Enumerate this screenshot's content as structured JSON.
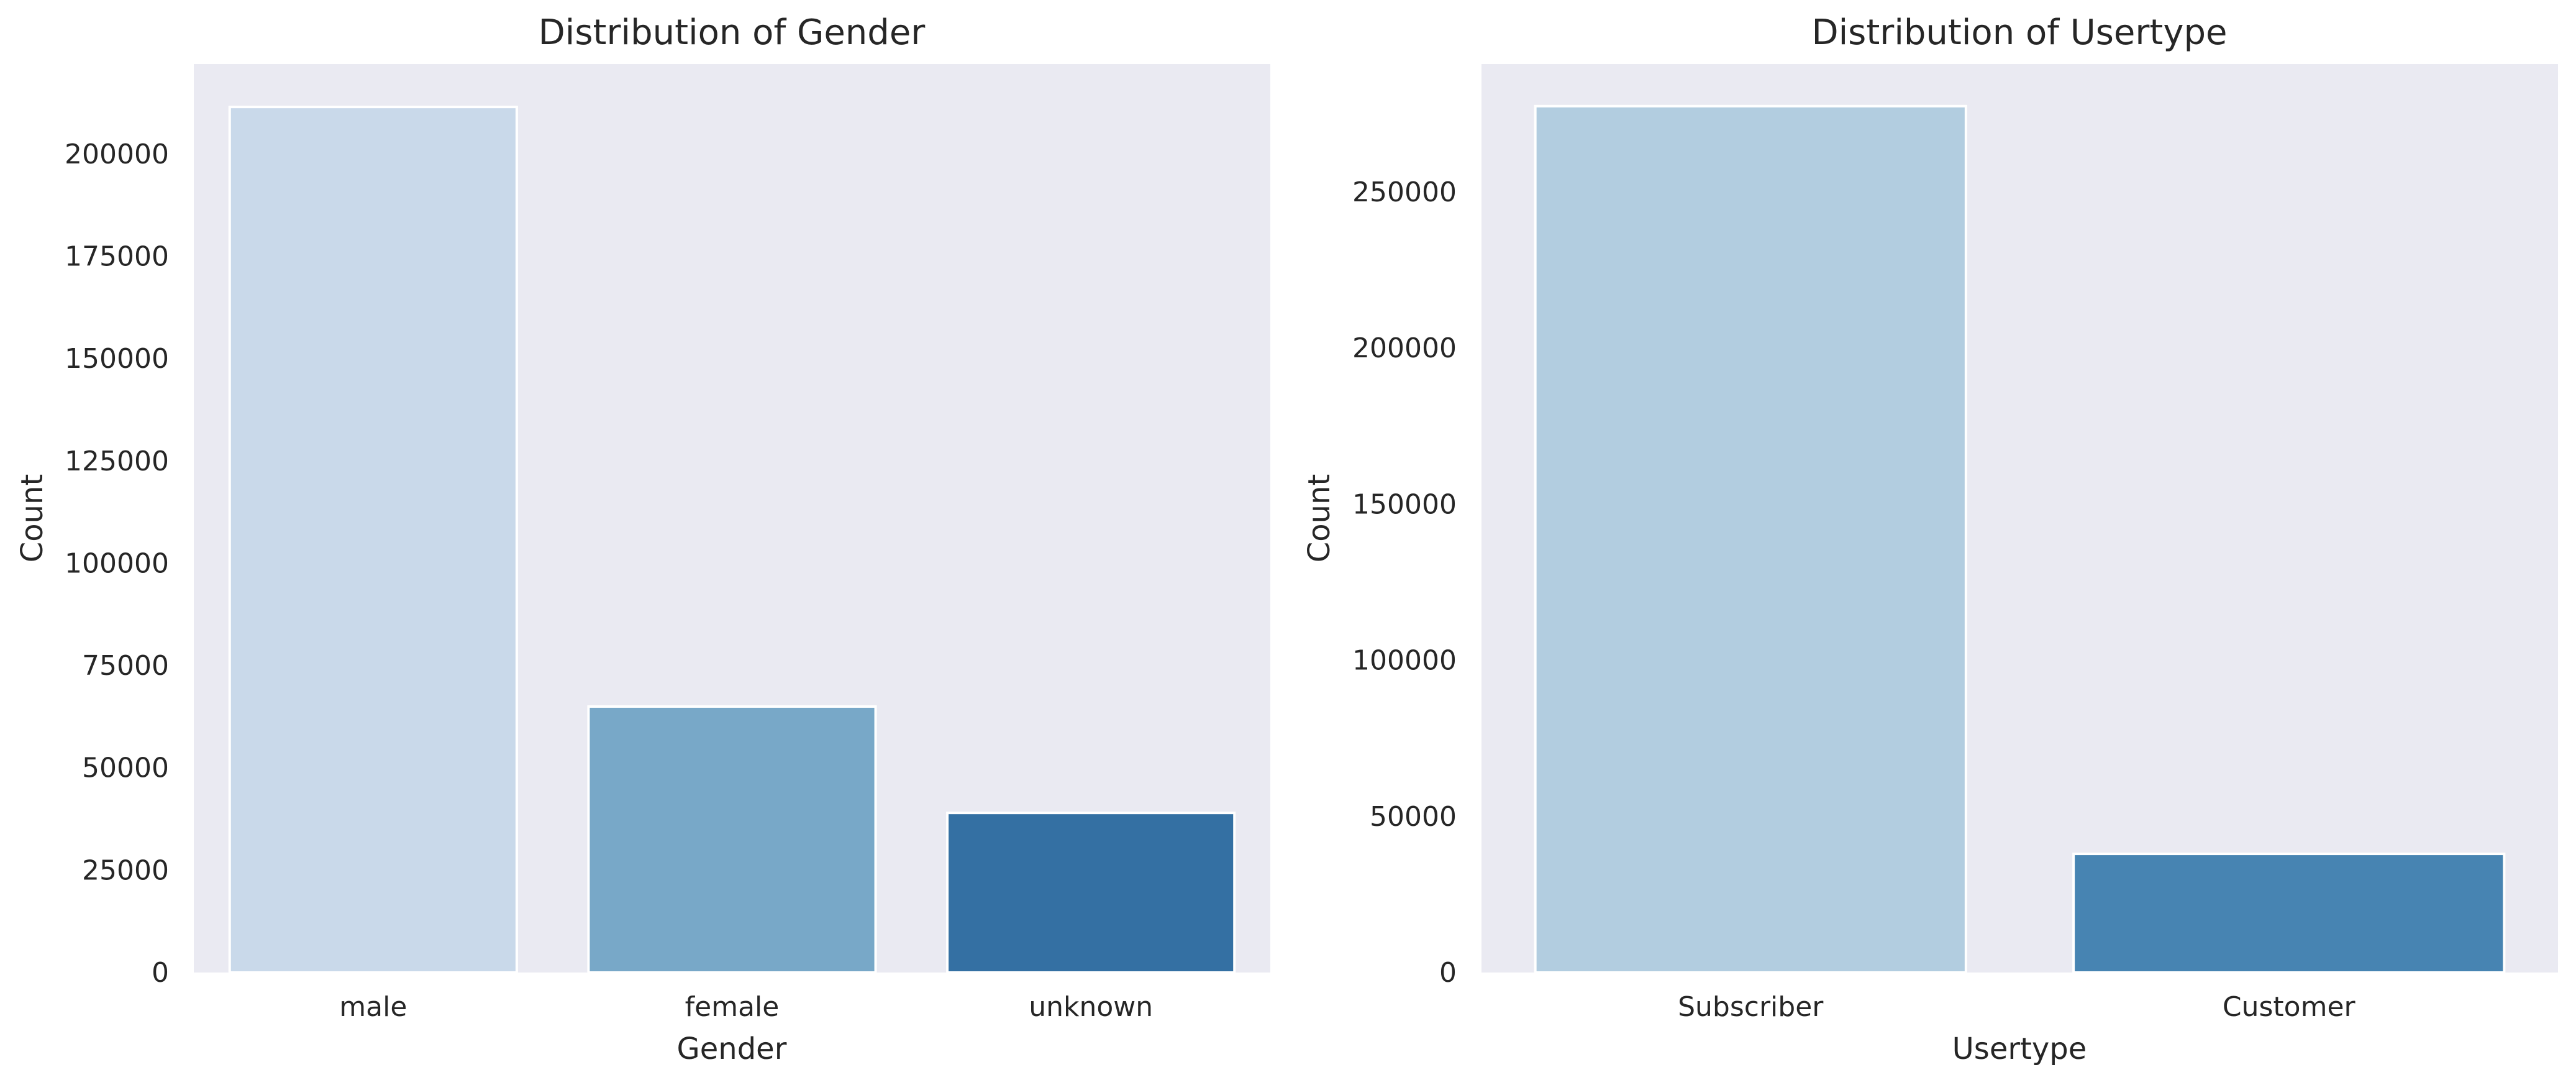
{
  "chart_data": [
    {
      "type": "bar",
      "title": "Distribution of Gender",
      "xlabel": "Gender",
      "ylabel": "Count",
      "categories": [
        "male",
        "female",
        "unknown"
      ],
      "values": [
        211500,
        65000,
        39000
      ],
      "colors": [
        "#c9d9ea",
        "#78a8c8",
        "#3470a3"
      ],
      "ylim": [
        0,
        222000
      ],
      "yticks": [
        0,
        25000,
        50000,
        75000,
        100000,
        125000,
        150000,
        175000,
        200000
      ],
      "grid": false,
      "legend": "none"
    },
    {
      "type": "bar",
      "title": "Distribution of Usertype",
      "xlabel": "Usertype",
      "ylabel": "Count",
      "categories": [
        "Subscriber",
        "Customer"
      ],
      "values": [
        277500,
        38000
      ],
      "colors": [
        "#b2cde0",
        "#4784b2"
      ],
      "ylim": [
        0,
        291000
      ],
      "yticks": [
        0,
        50000,
        100000,
        150000,
        200000,
        250000
      ],
      "grid": false,
      "legend": "none"
    }
  ]
}
